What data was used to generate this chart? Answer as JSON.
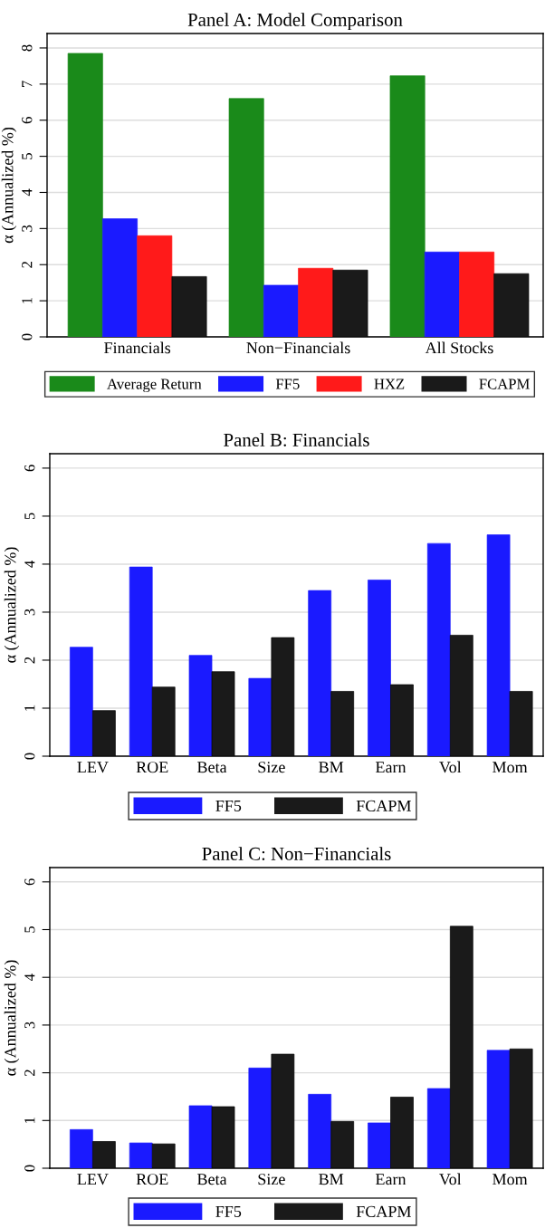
{
  "chart_data": [
    {
      "type": "bar",
      "title": "Panel A: Model Comparison",
      "ylabel": "α (Annualized %)",
      "categories": [
        "Financials",
        "Non−Financials",
        "All Stocks"
      ],
      "series": [
        {
          "name": "Average Return",
          "color": "#1a8a1a",
          "values": [
            7.85,
            6.6,
            7.23
          ]
        },
        {
          "name": "FF5",
          "color": "#1a1aff",
          "values": [
            3.27,
            1.43,
            2.35
          ]
        },
        {
          "name": "HXZ",
          "color": "#ff1a1a",
          "values": [
            2.8,
            1.9,
            2.35
          ]
        },
        {
          "name": "FCAPM",
          "color": "#1a1a1a",
          "values": [
            1.67,
            1.85,
            1.75
          ]
        }
      ],
      "ylim": [
        0,
        8.4
      ],
      "yticks": [
        0,
        1,
        2,
        3,
        4,
        5,
        6,
        7,
        8
      ],
      "grid": "y",
      "legend": "bottom"
    },
    {
      "type": "bar",
      "title": "Panel B: Financials",
      "ylabel": "α (Annualized %)",
      "categories": [
        "LEV",
        "ROE",
        "Beta",
        "Size",
        "BM",
        "Earn",
        "Vol",
        "Mom"
      ],
      "series": [
        {
          "name": "FF5",
          "color": "#1a1aff",
          "values": [
            2.27,
            3.94,
            2.1,
            1.62,
            3.45,
            3.67,
            4.43,
            4.61
          ]
        },
        {
          "name": "FCAPM",
          "color": "#1a1a1a",
          "values": [
            0.95,
            1.44,
            1.76,
            2.47,
            1.35,
            1.49,
            2.52,
            1.35
          ]
        }
      ],
      "ylim": [
        0,
        6.3
      ],
      "yticks": [
        0,
        1,
        2,
        3,
        4,
        5,
        6
      ],
      "grid": "y",
      "legend": "bottom"
    },
    {
      "type": "bar",
      "title": "Panel C: Non−Financials",
      "ylabel": "α (Annualized %)",
      "categories": [
        "LEV",
        "ROE",
        "Beta",
        "Size",
        "BM",
        "Earn",
        "Vol",
        "Mom"
      ],
      "series": [
        {
          "name": "FF5",
          "color": "#1a1aff",
          "values": [
            0.81,
            0.53,
            1.31,
            2.1,
            1.55,
            0.95,
            1.67,
            2.47
          ]
        },
        {
          "name": "FCAPM",
          "color": "#1a1a1a",
          "values": [
            0.56,
            0.51,
            1.29,
            2.39,
            0.98,
            1.49,
            5.07,
            2.5
          ]
        }
      ],
      "ylim": [
        0,
        6.3
      ],
      "yticks": [
        0,
        1,
        2,
        3,
        4,
        5,
        6
      ],
      "grid": "y",
      "legend": "bottom"
    }
  ]
}
